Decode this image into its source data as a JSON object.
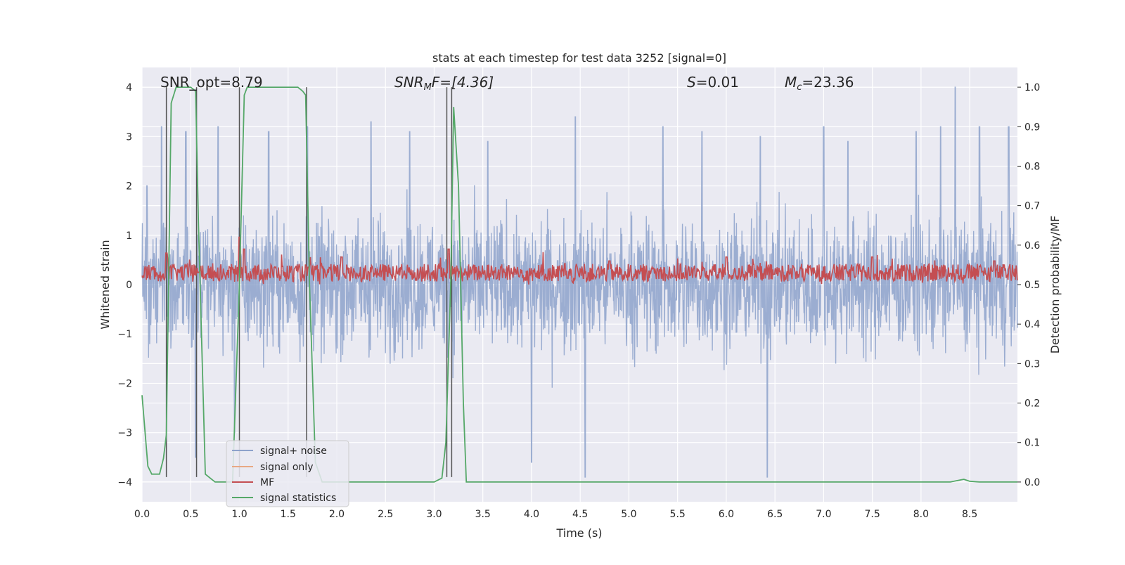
{
  "chart_data": {
    "type": "line",
    "title": "stats at each timestep for test data 3252 [signal=0]",
    "xlabel": "Time (s)",
    "ylabel_left": "Whitened strain",
    "ylabel_right": "Detection probability/MF",
    "xlim": [
      0.0,
      8.99
    ],
    "ylim_left": [
      -4.4,
      4.4
    ],
    "ylim_right": [
      -0.05,
      1.05
    ],
    "xticks": [
      0.0,
      0.5,
      1.0,
      1.5,
      2.0,
      2.5,
      3.0,
      3.5,
      4.0,
      4.5,
      5.0,
      5.5,
      6.0,
      6.5,
      7.0,
      7.5,
      8.0,
      8.5
    ],
    "xtick_labels": [
      "0.0",
      "0.5",
      "1.0",
      "1.5",
      "2.0",
      "2.5",
      "3.0",
      "3.5",
      "4.0",
      "4.5",
      "5.0",
      "5.5",
      "6.0",
      "6.5",
      "7.0",
      "7.5",
      "8.0",
      "8.5"
    ],
    "yticks_left": [
      -4,
      -3,
      -2,
      -1,
      0,
      1,
      2,
      3,
      4
    ],
    "ytick_labels_left": [
      "−4",
      "−3",
      "−2",
      "−1",
      "0",
      "1",
      "2",
      "3",
      "4"
    ],
    "yticks_right": [
      0.0,
      0.1,
      0.2,
      0.3,
      0.4,
      0.5,
      0.6,
      0.7,
      0.8,
      0.9,
      1.0
    ],
    "ytick_labels_right": [
      "0.0",
      "0.1",
      "0.2",
      "0.3",
      "0.4",
      "0.5",
      "0.6",
      "0.7",
      "0.8",
      "0.9",
      "1.0"
    ],
    "annotations": {
      "snr_opt": "SNR_opt=8.79",
      "snr_mf_sym": "SNR",
      "snr_mf_sub": "M",
      "snr_mf_rest": "F=[4.36]",
      "s_sym": "S",
      "s_rest": "=0.01",
      "mc_sym": "M",
      "mc_sub": "c",
      "mc_rest": "=23.36"
    },
    "legend": {
      "placement": "lower-left",
      "entries": [
        "signal+ noise",
        "signal only",
        "MF",
        "signal statistics"
      ]
    },
    "series": [
      {
        "name": "signal+ noise",
        "axis": "left",
        "color": "#8da2cb",
        "kind": "noise",
        "peaks": [
          [
            0.05,
            2.0
          ],
          [
            0.2,
            3.2
          ],
          [
            0.45,
            3.1
          ],
          [
            0.55,
            -3.5
          ],
          [
            0.78,
            3.2
          ],
          [
            0.95,
            -3.0
          ],
          [
            1.3,
            3.1
          ],
          [
            1.7,
            3.2
          ],
          [
            2.35,
            3.3
          ],
          [
            2.75,
            3.1
          ],
          [
            3.55,
            2.9
          ],
          [
            4.0,
            -3.6
          ],
          [
            4.45,
            3.4
          ],
          [
            4.55,
            -3.9
          ],
          [
            5.35,
            3.2
          ],
          [
            5.75,
            3.1
          ],
          [
            6.35,
            3.0
          ],
          [
            6.42,
            -3.9
          ],
          [
            7.0,
            3.2
          ],
          [
            7.25,
            2.9
          ],
          [
            7.95,
            3.1
          ],
          [
            8.2,
            3.2
          ],
          [
            8.35,
            4.0
          ],
          [
            8.6,
            3.2
          ],
          [
            8.9,
            3.2
          ]
        ]
      },
      {
        "name": "signal only",
        "axis": "left",
        "color": "#e8a883",
        "values": []
      },
      {
        "name": "MF",
        "axis": "right",
        "color": "#c44e52",
        "kind": "mf",
        "baseline": 0.53,
        "peaks": [
          [
            0.25,
            0.58
          ],
          [
            1.0,
            0.62
          ],
          [
            1.05,
            0.59
          ],
          [
            2.05,
            0.57
          ],
          [
            3.15,
            0.59
          ],
          [
            4.8,
            0.56
          ],
          [
            6.0,
            0.57
          ],
          [
            7.5,
            0.57
          ],
          [
            8.75,
            0.56
          ]
        ]
      },
      {
        "name": "signal statistics",
        "axis": "right",
        "color": "#55a868",
        "x": [
          0.0,
          0.06,
          0.1,
          0.18,
          0.22,
          0.25,
          0.3,
          0.35,
          0.4,
          0.5,
          0.55,
          0.58,
          0.65,
          0.7,
          0.75,
          0.85,
          0.93,
          1.0,
          1.05,
          1.08,
          1.15,
          1.3,
          1.5,
          1.6,
          1.65,
          1.68,
          1.72,
          1.78,
          1.85,
          1.95,
          2.5,
          3.0,
          3.08,
          3.12,
          3.17,
          3.2,
          3.25,
          3.3,
          3.33,
          3.4,
          4.5,
          5.0,
          5.5,
          6.0,
          7.0,
          8.3,
          8.4,
          8.44,
          8.5,
          8.6,
          8.99
        ],
        "y": [
          0.22,
          0.04,
          0.02,
          0.02,
          0.06,
          0.12,
          0.96,
          1.0,
          1.0,
          1.0,
          0.99,
          0.65,
          0.02,
          0.01,
          0.0,
          0.0,
          0.0,
          0.5,
          0.98,
          1.0,
          1.0,
          1.0,
          1.0,
          1.0,
          0.99,
          0.98,
          0.5,
          0.05,
          0.0,
          0.0,
          0.0,
          0.0,
          0.01,
          0.1,
          0.5,
          0.95,
          0.75,
          0.2,
          0.0,
          0.0,
          0.0,
          0.0,
          0.0,
          0.0,
          0.0,
          0.0,
          0.005,
          0.007,
          0.002,
          0.0,
          0.0
        ]
      }
    ],
    "vertical_markers": [
      0.25,
      0.56,
      1.0,
      1.69,
      3.13,
      3.18
    ]
  }
}
